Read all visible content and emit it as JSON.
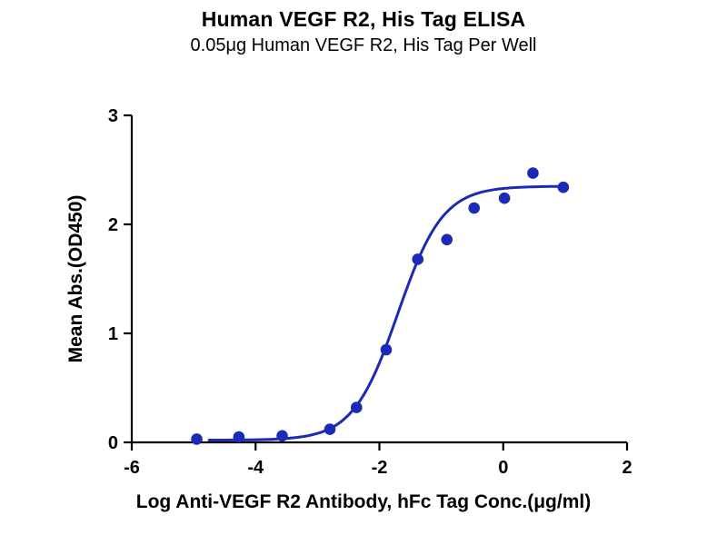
{
  "chart_data": {
    "type": "scatter",
    "title": "Human VEGF R2, His Tag ELISA",
    "subtitle": "0.05μg Human VEGF R2, His Tag Per Well",
    "xlabel": "Log Anti-VEGF R2 Antibody, hFc Tag Conc.(μg/ml)",
    "ylabel": "Mean Abs.(OD450)",
    "xlim": [
      -6,
      2
    ],
    "ylim": [
      0,
      3
    ],
    "xticks": [
      -6,
      -4,
      -2,
      0,
      2
    ],
    "yticks": [
      0,
      1,
      2,
      3
    ],
    "grid": false,
    "legend": "none",
    "color": "#1c2bb5",
    "axis_color": "#000000",
    "points": [
      [
        -4.95,
        0.03
      ],
      [
        -4.27,
        0.05
      ],
      [
        -3.57,
        0.06
      ],
      [
        -2.8,
        0.12
      ],
      [
        -2.37,
        0.32
      ],
      [
        -1.89,
        0.85
      ],
      [
        -1.38,
        1.68
      ],
      [
        -0.91,
        1.86
      ],
      [
        -0.47,
        2.15
      ],
      [
        0.02,
        2.24
      ],
      [
        0.48,
        2.47
      ],
      [
        0.97,
        2.34
      ]
    ],
    "fit": {
      "model": "4PL",
      "bottom": 0.02,
      "top": 2.35,
      "logEC50": -1.7,
      "hill": 1.2,
      "range": [
        -4.75,
        1.0
      ]
    }
  }
}
